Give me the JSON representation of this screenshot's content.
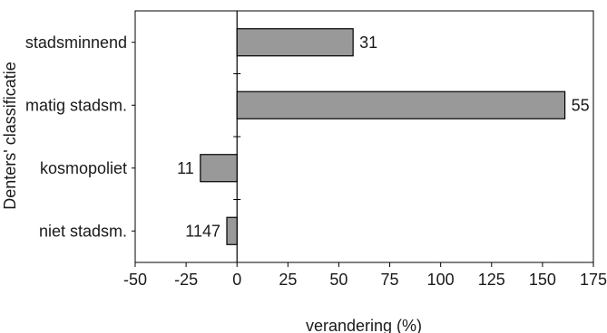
{
  "chart_data": {
    "type": "bar",
    "orientation": "horizontal",
    "title": "",
    "xlabel": "verandering (%)",
    "ylabel": "Denters' classificatie",
    "xlim": [
      -50,
      175
    ],
    "xticks": [
      -50,
      -25,
      0,
      25,
      50,
      75,
      100,
      125,
      150,
      175
    ],
    "xtick_labels": [
      "-50",
      "-25",
      "0",
      "25",
      "50",
      "75",
      "100",
      "125",
      "150",
      "175"
    ],
    "categories": [
      "stadsminnend",
      "matig stadsm.",
      "kosmopoliet",
      "niet stadsm."
    ],
    "values": [
      57,
      161,
      -18,
      -5
    ],
    "data_labels": [
      "31",
      "55",
      "11",
      "1147"
    ],
    "grid": false,
    "legend": "none",
    "colors": {
      "bar_fill": "#999999",
      "bar_stroke": "#000000",
      "axis": "#000000"
    }
  }
}
